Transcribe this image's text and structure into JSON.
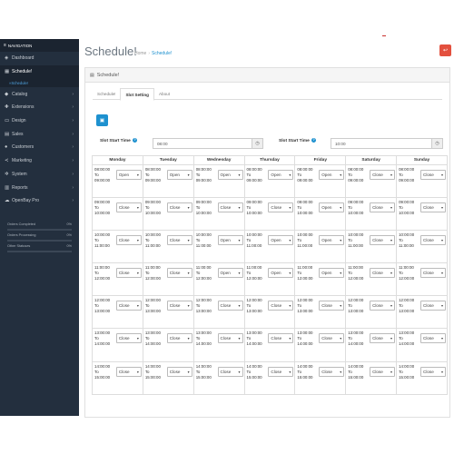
{
  "sidebar": {
    "header": "NAVIGATION",
    "items": [
      {
        "label": "Dashboard",
        "icon": "dashboard-icon",
        "glyph": "◈",
        "chevron": false,
        "active": false
      },
      {
        "label": "Schedule!",
        "icon": "calendar-icon",
        "glyph": "▦",
        "chevron": false,
        "active": true
      },
      {
        "label": "Catalog",
        "icon": "tag-icon",
        "glyph": "◆",
        "chevron": true,
        "active": false
      },
      {
        "label": "Extensions",
        "icon": "puzzle-icon",
        "glyph": "✚",
        "chevron": true,
        "active": false
      },
      {
        "label": "Design",
        "icon": "monitor-icon",
        "glyph": "▭",
        "chevron": true,
        "active": false
      },
      {
        "label": "Sales",
        "icon": "cart-icon",
        "glyph": "▤",
        "chevron": true,
        "active": false
      },
      {
        "label": "Customers",
        "icon": "user-icon",
        "glyph": "●",
        "chevron": true,
        "active": false
      },
      {
        "label": "Marketing",
        "icon": "share-icon",
        "glyph": "≺",
        "chevron": true,
        "active": false
      },
      {
        "label": "System",
        "icon": "gear-icon",
        "glyph": "✲",
        "chevron": true,
        "active": false
      },
      {
        "label": "Reports",
        "icon": "bar-chart-icon",
        "glyph": "▥",
        "chevron": true,
        "active": false
      },
      {
        "label": "OpenBay Pro",
        "icon": "cloud-icon",
        "glyph": "☁",
        "chevron": true,
        "active": false
      }
    ],
    "subitem": "Schedule!",
    "stats": [
      {
        "label": "Orders Completed",
        "value": "0%"
      },
      {
        "label": "Orders Processing",
        "value": "0%"
      },
      {
        "label": "Other Statuses",
        "value": "0%"
      }
    ]
  },
  "header": {
    "title": "Schedule!",
    "breadcrumb": [
      "Home",
      "Schedule!"
    ],
    "breadcrumb_sep": "›"
  },
  "panel": {
    "heading": "Schedule!",
    "tabs": [
      "Schedule!",
      "Slot Setting",
      "About"
    ],
    "active_tab": 1,
    "slot_start_label": "Slot Start Time",
    "slot_start_value_1": "08:00",
    "slot_start_value_2": "10:00"
  },
  "days": [
    "Monday",
    "Tuesday",
    "Wednesday",
    "Thursday",
    "Friday",
    "Saturday",
    "Sunday"
  ],
  "slots": [
    {
      "from": "08:00:00",
      "to": "09:00:00",
      "status": [
        "Open",
        "Open",
        "Open",
        "Open",
        "Open",
        "Close",
        "Close"
      ]
    },
    {
      "from": "09:00:00",
      "to": "10:00:00",
      "status": [
        "Close",
        "Close",
        "Close",
        "Close",
        "Open",
        "Close",
        "Close"
      ]
    },
    {
      "from": "10:00:00",
      "to": "11:00:00",
      "status": [
        "Close",
        "Close",
        "Open",
        "Open",
        "Open",
        "Close",
        "Close"
      ]
    },
    {
      "from": "11:00:00",
      "to": "12:00:00",
      "status": [
        "Close",
        "Close",
        "Open",
        "Open",
        "Open",
        "Close",
        "Close"
      ]
    },
    {
      "from": "12:00:00",
      "to": "13:00:00",
      "status": [
        "Close",
        "Close",
        "Close",
        "Close",
        "Close",
        "Close",
        "Close"
      ]
    },
    {
      "from": "13:00:00",
      "to": "14:00:00",
      "status": [
        "Close",
        "Close",
        "Close",
        "Close",
        "Close",
        "Close",
        "Close"
      ]
    },
    {
      "from": "14:00:00",
      "to": "15:00:00",
      "status": [
        "Close",
        "Close",
        "Close",
        "Close",
        "Close",
        "Close",
        "Close"
      ]
    }
  ],
  "to_label": "To",
  "colors": {
    "sidebar": "#232f3e",
    "accent": "#1e91cf",
    "danger": "#e3503e"
  }
}
